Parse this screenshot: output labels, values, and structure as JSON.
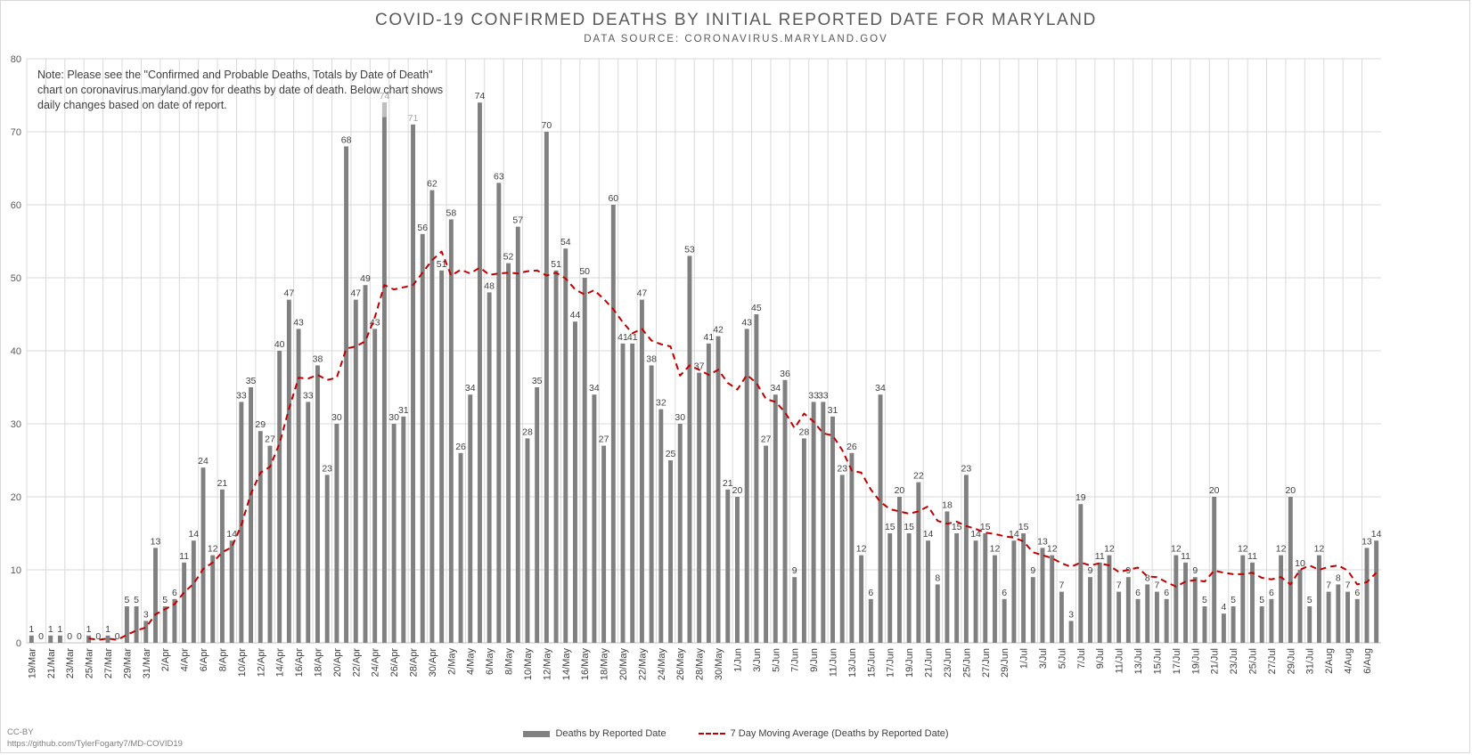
{
  "footer": {
    "license": "CC-BY",
    "source_url": "https://github.com/TylerFogarty7/MD-COVID19"
  },
  "chart_data": {
    "type": "bar",
    "title": "COVID-19 CONFIRMED DEATHS BY INITIAL REPORTED DATE FOR MARYLAND",
    "subtitle": "DATA SOURCE: CORONAVIRUS.MARYLAND.GOV",
    "note": "Note: Please see the \"Confirmed and Probable Deaths, Totals by Date of Death\" chart on coronavirus.maryland.gov for deaths by date of death. Below chart shows daily changes based on date of report.",
    "ylim": [
      0,
      80
    ],
    "yticks": [
      0,
      10,
      20,
      30,
      40,
      50,
      60,
      70,
      80
    ],
    "grid": true,
    "legend_position": "bottom",
    "colors": {
      "bars": "#808080",
      "highlight": "#bfbfbf",
      "moving_average": "#c00000",
      "grid": "#d9d9d9"
    },
    "categories": [
      "19/Mar",
      "20/Mar",
      "21/Mar",
      "22/Mar",
      "23/Mar",
      "24/Mar",
      "25/Mar",
      "26/Mar",
      "27/Mar",
      "28/Mar",
      "29/Mar",
      "30/Mar",
      "31/Mar",
      "1/Apr",
      "2/Apr",
      "3/Apr",
      "4/Apr",
      "5/Apr",
      "6/Apr",
      "7/Apr",
      "8/Apr",
      "9/Apr",
      "10/Apr",
      "11/Apr",
      "12/Apr",
      "13/Apr",
      "14/Apr",
      "15/Apr",
      "16/Apr",
      "17/Apr",
      "18/Apr",
      "19/Apr",
      "20/Apr",
      "21/Apr",
      "22/Apr",
      "23/Apr",
      "24/Apr",
      "25/Apr",
      "26/Apr",
      "27/Apr",
      "28/Apr",
      "29/Apr",
      "30/Apr",
      "1/May",
      "2/May",
      "3/May",
      "4/May",
      "5/May",
      "6/May",
      "7/May",
      "8/May",
      "9/May",
      "10/May",
      "11/May",
      "12/May",
      "13/May",
      "14/May",
      "15/May",
      "16/May",
      "17/May",
      "18/May",
      "19/May",
      "20/May",
      "21/May",
      "22/May",
      "23/May",
      "24/May",
      "25/May",
      "26/May",
      "27/May",
      "28/May",
      "29/May",
      "30/May",
      "31/May",
      "1/Jun",
      "2/Jun",
      "3/Jun",
      "4/Jun",
      "5/Jun",
      "6/Jun",
      "7/Jun",
      "8/Jun",
      "9/Jun",
      "10/Jun",
      "11/Jun",
      "12/Jun",
      "13/Jun",
      "14/Jun",
      "15/Jun",
      "16/Jun",
      "17/Jun",
      "18/Jun",
      "19/Jun",
      "20/Jun",
      "21/Jun",
      "22/Jun",
      "23/Jun",
      "24/Jun",
      "25/Jun",
      "26/Jun",
      "27/Jun",
      "28/Jun",
      "29/Jun",
      "30/Jun",
      "1/Jul",
      "2/Jul",
      "3/Jul",
      "4/Jul",
      "5/Jul",
      "6/Jul",
      "7/Jul",
      "8/Jul",
      "9/Jul",
      "10/Jul",
      "11/Jul",
      "12/Jul",
      "13/Jul",
      "14/Jul",
      "15/Jul",
      "16/Jul",
      "17/Jul",
      "18/Jul",
      "19/Jul",
      "20/Jul",
      "21/Jul",
      "22/Jul",
      "23/Jul",
      "24/Jul",
      "25/Jul",
      "26/Jul",
      "27/Jul",
      "28/Jul",
      "29/Jul",
      "30/Jul",
      "31/Jul",
      "1/Aug",
      "2/Aug",
      "3/Aug",
      "4/Aug",
      "5/Aug",
      "6/Aug",
      "7/Aug"
    ],
    "series": [
      {
        "name": "Deaths by Reported Date",
        "values": [
          1,
          0,
          1,
          1,
          0,
          0,
          1,
          0,
          1,
          0,
          5,
          5,
          3,
          13,
          5,
          6,
          11,
          14,
          24,
          12,
          21,
          14,
          33,
          35,
          29,
          27,
          40,
          47,
          43,
          33,
          38,
          23,
          30,
          68,
          47,
          49,
          43,
          74,
          30,
          31,
          71,
          56,
          62,
          51,
          58,
          26,
          34,
          74,
          48,
          63,
          52,
          57,
          28,
          35,
          70,
          51,
          54,
          44,
          50,
          34,
          27,
          60,
          41,
          41,
          47,
          38,
          32,
          25,
          30,
          53,
          37,
          41,
          42,
          21,
          20,
          43,
          45,
          27,
          34,
          36,
          9,
          28,
          33,
          33,
          31,
          23,
          26,
          12,
          6,
          34,
          15,
          20,
          15,
          22,
          14,
          8,
          18,
          15,
          23,
          14,
          15,
          12,
          6,
          14,
          15,
          9,
          13,
          12,
          7,
          3,
          19,
          9,
          11,
          12,
          7,
          9,
          6,
          8,
          7,
          6,
          12,
          11,
          9,
          5,
          20,
          4,
          5,
          12,
          11,
          5,
          6,
          12,
          20,
          10,
          5,
          12,
          7,
          8,
          7,
          6,
          13,
          14
        ]
      },
      {
        "name": "7 Day Moving Average (Deaths by Reported Date)",
        "type": "line",
        "values": [
          null,
          null,
          null,
          null,
          null,
          null,
          0.6,
          0.4,
          0.6,
          0.4,
          1.1,
          1.7,
          2.1,
          3.9,
          4.6,
          5.3,
          6.9,
          8.1,
          10.1,
          11.0,
          12.4,
          13.1,
          16.1,
          20.4,
          23.3,
          24.1,
          27.3,
          32.1,
          36.3,
          36.2,
          36.7,
          36.0,
          36.3,
          40.3,
          40.6,
          41.3,
          44.6,
          49.0,
          48.4,
          48.7,
          49.0,
          50.7,
          52.4,
          53.6,
          50.3,
          51.1,
          50.6,
          51.4,
          50.4,
          50.6,
          50.7,
          50.6,
          50.9,
          51.0,
          50.3,
          50.7,
          49.9,
          48.4,
          47.7,
          48.3,
          47.1,
          45.7,
          43.9,
          42.4,
          43.0,
          41.4,
          40.9,
          40.6,
          36.6,
          38.0,
          37.4,
          36.7,
          37.4,
          35.6,
          34.7,
          36.7,
          35.6,
          33.4,
          33.0,
          31.6,
          29.4,
          31.4,
          30.3,
          28.7,
          28.4,
          26.4,
          23.6,
          23.3,
          21.0,
          19.3,
          18.3,
          18.0,
          17.7,
          18.0,
          18.7,
          16.7,
          16.3,
          16.6,
          16.0,
          15.6,
          15.1,
          14.9,
          14.6,
          14.4,
          13.9,
          12.4,
          12.0,
          11.6,
          10.9,
          10.4,
          11.0,
          10.6,
          10.9,
          10.6,
          9.7,
          10.0,
          10.3,
          9.1,
          9.0,
          8.3,
          7.7,
          8.4,
          8.6,
          8.4,
          9.9,
          9.6,
          9.4,
          9.4,
          9.6,
          8.9,
          8.7,
          9.0,
          8.0,
          10.0,
          10.6,
          10.0,
          10.4,
          10.6,
          9.9,
          8.0,
          8.3,
          9.6
        ]
      }
    ],
    "data_labels": [
      "1",
      "0",
      "1",
      "1",
      "0",
      "0",
      "1",
      "0",
      "1",
      "0",
      "5",
      "5",
      "3",
      "13",
      "5",
      "6",
      "11",
      "14",
      "24",
      "12",
      "21",
      "14",
      "33",
      "35",
      "29",
      "27",
      "40",
      "47",
      "43",
      "33",
      "38",
      "23",
      "30",
      "68",
      "47",
      "49",
      "43",
      "74",
      "30",
      "31",
      "71",
      "56",
      "62",
      "51",
      "58",
      "26",
      "34",
      "74",
      "48",
      "63",
      "52",
      "57",
      "28",
      "35",
      "70",
      "51",
      "54",
      "44",
      "50",
      "34",
      "27",
      "60",
      "41",
      "41",
      "47",
      "38",
      "32",
      "25",
      "30",
      "53",
      "37",
      "41",
      "42",
      "21",
      "20",
      "43",
      "45",
      "27",
      "34",
      "36",
      "9",
      "28",
      "33",
      "33",
      "31",
      "23",
      "26",
      "12",
      "6",
      "34",
      "15",
      "20",
      "15",
      "22",
      "14",
      "8",
      "18",
      "15",
      "23",
      "14",
      "15",
      "12",
      "6",
      "14",
      "15",
      "9",
      "13",
      "12",
      "7",
      "3",
      "19",
      "9",
      "11",
      "12",
      "7",
      "9",
      "6",
      "8",
      "7",
      "6",
      "12",
      "11",
      "9",
      "5",
      "20",
      "4",
      "5",
      "12",
      "11",
      "5",
      "6",
      "12",
      "20",
      "10",
      "5",
      "12",
      "7",
      "8",
      "7",
      "6",
      "13",
      "14"
    ],
    "x_tick_labels_shown": [
      "19/Mar",
      "21/Mar",
      "23/Mar",
      "25/Mar",
      "27/Mar",
      "29/Mar",
      "31/Mar",
      "2/Apr",
      "4/Apr",
      "6/Apr",
      "8/Apr",
      "10/Apr",
      "12/Apr",
      "14/Apr",
      "16/Apr",
      "18/Apr",
      "20/Apr",
      "22/Apr",
      "24/Apr",
      "26/Apr",
      "28/Apr",
      "30/Apr",
      "2/May",
      "4/May",
      "6/May",
      "8/May",
      "10/May",
      "12/May",
      "14/May",
      "16/May",
      "18/May",
      "20/May",
      "22/May",
      "24/May",
      "26/May",
      "28/May",
      "30/May",
      "1/Jun",
      "3/Jun",
      "5/Jun",
      "7/Jun",
      "9/Jun",
      "11/Jun",
      "13/Jun",
      "15/Jun",
      "17/Jun",
      "19/Jun",
      "21/Jun",
      "23/Jun",
      "25/Jun",
      "27/Jun",
      "29/Jun",
      "1/Jul",
      "3/Jul",
      "5/Jul",
      "7/Jul",
      "9/Jul",
      "11/Jul",
      "13/Jul",
      "15/Jul",
      "17/Jul",
      "19/Jul",
      "21/Jul",
      "23/Jul",
      "25/Jul",
      "27/Jul",
      "29/Jul",
      "31/Jul",
      "2/Aug",
      "4/Aug",
      "6/Aug"
    ],
    "legend": [
      "Deaths by Reported Date",
      "7 Day Moving Average (Deaths by Reported Date)"
    ]
  }
}
